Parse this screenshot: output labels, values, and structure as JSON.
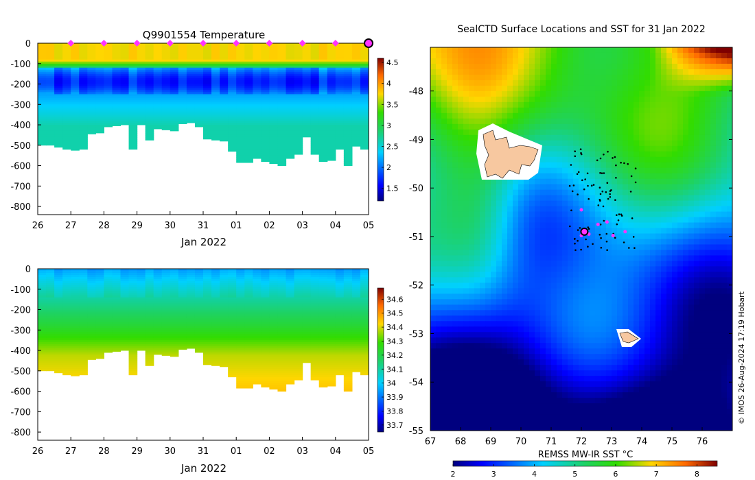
{
  "chart_data": [
    {
      "type": "heatmap",
      "title": "Q9901554  Temperature",
      "xlabel": "Jan 2022",
      "x_ticks": [
        "26",
        "27",
        "28",
        "29",
        "30",
        "31",
        "01",
        "02",
        "03",
        "04",
        "05"
      ],
      "y_ticks": [
        "0",
        "-100",
        "-200",
        "-300",
        "-400",
        "-500",
        "-600",
        "-700",
        "-800"
      ],
      "ylim": [
        -840,
        0
      ],
      "colorbar_ticks": [
        "1.5",
        "2",
        "2.5",
        "3",
        "3.5",
        "4",
        "4.5"
      ],
      "colorbar_range": [
        1.2,
        4.6
      ],
      "profile_depths_m": [
        500,
        500,
        510,
        520,
        525,
        520,
        445,
        440,
        410,
        405,
        400,
        520,
        400,
        475,
        420,
        425,
        430,
        395,
        390,
        410,
        470,
        475,
        480,
        530,
        585,
        585,
        565,
        580,
        590,
        600,
        565,
        545,
        460,
        545,
        580,
        575,
        520,
        600,
        505,
        520
      ],
      "surface_markers_days": [
        1,
        2,
        3,
        4,
        5,
        6,
        7,
        8,
        9
      ],
      "last_profile_day": 10
    },
    {
      "type": "heatmap",
      "title": "",
      "xlabel": "Jan 2022",
      "x_ticks": [
        "26",
        "27",
        "28",
        "29",
        "30",
        "31",
        "01",
        "02",
        "03",
        "04",
        "05"
      ],
      "y_ticks": [
        "0",
        "-100",
        "-200",
        "-300",
        "-400",
        "-500",
        "-600",
        "-700",
        "-800"
      ],
      "ylim": [
        -840,
        0
      ],
      "colorbar_ticks": [
        "33.7",
        "33.8",
        "33.9",
        "34",
        "34.1",
        "34.2",
        "34.3",
        "34.4",
        "34.5",
        "34.6"
      ],
      "colorbar_range": [
        33.65,
        34.68
      ]
    },
    {
      "type": "heatmap",
      "title": "SealCTD Surface Locations and SST for 31 Jan 2022",
      "x_ticks": [
        "67",
        "68",
        "69",
        "70",
        "71",
        "72",
        "73",
        "74",
        "75",
        "76"
      ],
      "y_ticks": [
        "-48",
        "-49",
        "-50",
        "-51",
        "-52",
        "-53",
        "-54",
        "-55"
      ],
      "xlim": [
        67,
        77
      ],
      "ylim": [
        -55,
        -47.1
      ],
      "colorbar_label": "REMSS MW-IR SST °C",
      "colorbar_ticks": [
        "2",
        "3",
        "4",
        "5",
        "6",
        "7",
        "8"
      ],
      "colorbar_range": [
        2,
        8.5
      ],
      "current_position": {
        "lon": 72.1,
        "lat": -50.9
      },
      "recent_positions": [
        {
          "lon": 72.0,
          "lat": -50.45
        },
        {
          "lon": 72.25,
          "lat": -50.95
        },
        {
          "lon": 72.55,
          "lat": -50.75
        },
        {
          "lon": 72.85,
          "lat": -50.7
        },
        {
          "lon": 73.05,
          "lat": -50.98
        },
        {
          "lon": 73.45,
          "lat": -50.9
        },
        {
          "lon": 72.0,
          "lat": -50.98
        }
      ],
      "credit": "© IMOS 26-Aug-2024 17:19 Hobart"
    }
  ]
}
